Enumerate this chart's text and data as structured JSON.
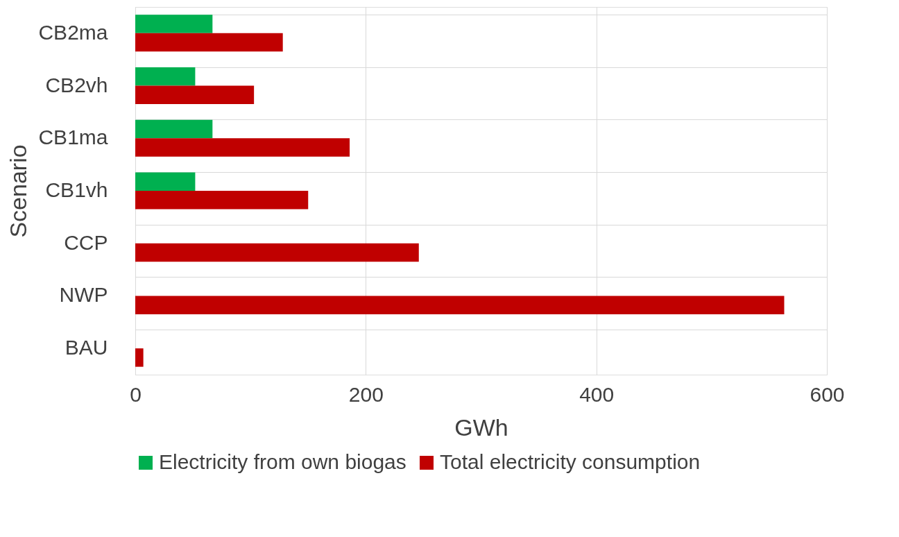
{
  "chart_data": {
    "type": "bar",
    "orientation": "horizontal",
    "xlabel": "GWh",
    "ylabel": "Scenario",
    "categories": [
      "CB2ma",
      "CB2vh",
      "CB1ma",
      "CB1vh",
      "CCP",
      "NWP",
      "BAU"
    ],
    "series": [
      {
        "name": "Electricity from own biogas",
        "color": "#00b050",
        "values": [
          67,
          52,
          67,
          52,
          null,
          null,
          null
        ]
      },
      {
        "name": "Total electricity consumption",
        "color": "#c00000",
        "values": [
          128,
          103,
          186,
          150,
          246,
          563,
          7
        ]
      }
    ],
    "xlim": [
      0,
      600
    ],
    "xticks": [
      0,
      200,
      400,
      600
    ],
    "grid": true,
    "legend": "bottom"
  }
}
